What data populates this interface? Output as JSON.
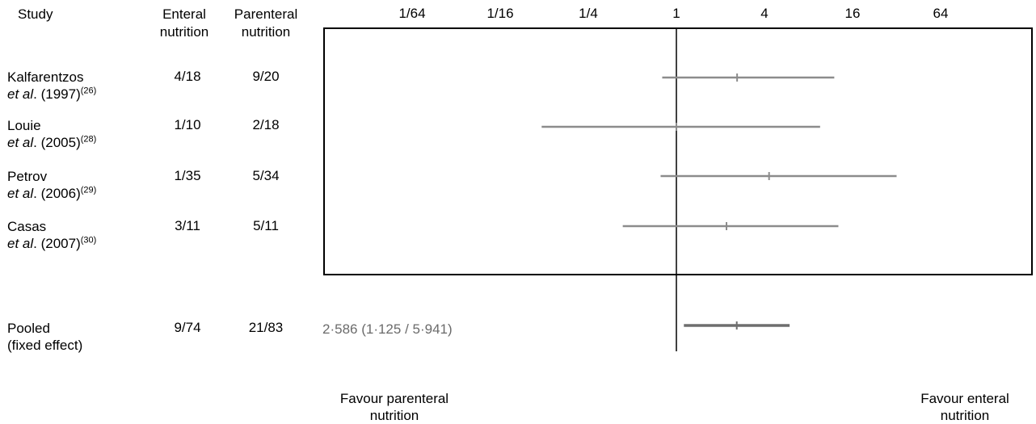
{
  "header": {
    "study": "Study",
    "enteral_line1": "Enteral",
    "enteral_line2": "nutrition",
    "parenteral_line1": "Parenteral",
    "parenteral_line2": "nutrition"
  },
  "studies": [
    {
      "name_line1": "Kalfarentzos",
      "name_line2_prefix": "et al",
      "name_line2_suffix": ". (1997)",
      "ref": "(26)",
      "enteral": "4/18",
      "parenteral": "9/20"
    },
    {
      "name_line1": "Louie",
      "name_line2_prefix": "et al",
      "name_line2_suffix": ". (2005)",
      "ref": "(28)",
      "enteral": "1/10",
      "parenteral": "2/18"
    },
    {
      "name_line1": "Petrov",
      "name_line2_prefix": "et al",
      "name_line2_suffix": ". (2006)",
      "ref": "(29)",
      "enteral": "1/35",
      "parenteral": "5/34"
    },
    {
      "name_line1": "Casas",
      "name_line2_prefix": "et al",
      "name_line2_suffix": ". (2007)",
      "ref": "(30)",
      "enteral": "3/11",
      "parenteral": "5/11"
    }
  ],
  "pooled": {
    "label_line1": "Pooled",
    "label_line2": "(fixed effect)",
    "enteral": "9/74",
    "parenteral": "21/83",
    "estimate_text": "2·586 (1·125 / 5·941)"
  },
  "favour": {
    "left_line1": "Favour parenteral",
    "left_line2": "nutrition",
    "right_line1": "Favour enteral",
    "right_line2": "nutrition"
  },
  "chart_data": {
    "type": "forest",
    "scale": "log",
    "x_ticks": [
      {
        "label": "1/64",
        "value": 0.015625
      },
      {
        "label": "1/16",
        "value": 0.0625
      },
      {
        "label": "1/4",
        "value": 0.25
      },
      {
        "label": "1",
        "value": 1
      },
      {
        "label": "4",
        "value": 4
      },
      {
        "label": "16",
        "value": 16
      },
      {
        "label": "64",
        "value": 64
      }
    ],
    "reference_line": 1,
    "series": [
      {
        "study": "Kalfarentzos",
        "estimate": 2.6,
        "lower": 0.8,
        "upper": 12.0
      },
      {
        "study": "Louie",
        "estimate": 1.0,
        "lower": 0.12,
        "upper": 9.6
      },
      {
        "study": "Petrov",
        "estimate": 4.3,
        "lower": 0.78,
        "upper": 32.0
      },
      {
        "study": "Casas",
        "estimate": 2.2,
        "lower": 0.43,
        "upper": 12.8
      }
    ],
    "pooled": {
      "estimate": 2.586,
      "lower": 1.125,
      "upper": 5.941
    },
    "colors": {
      "ci_line": "#8c8c8c",
      "pooled_line": "#6e6e6e",
      "axis": "#000000"
    }
  }
}
